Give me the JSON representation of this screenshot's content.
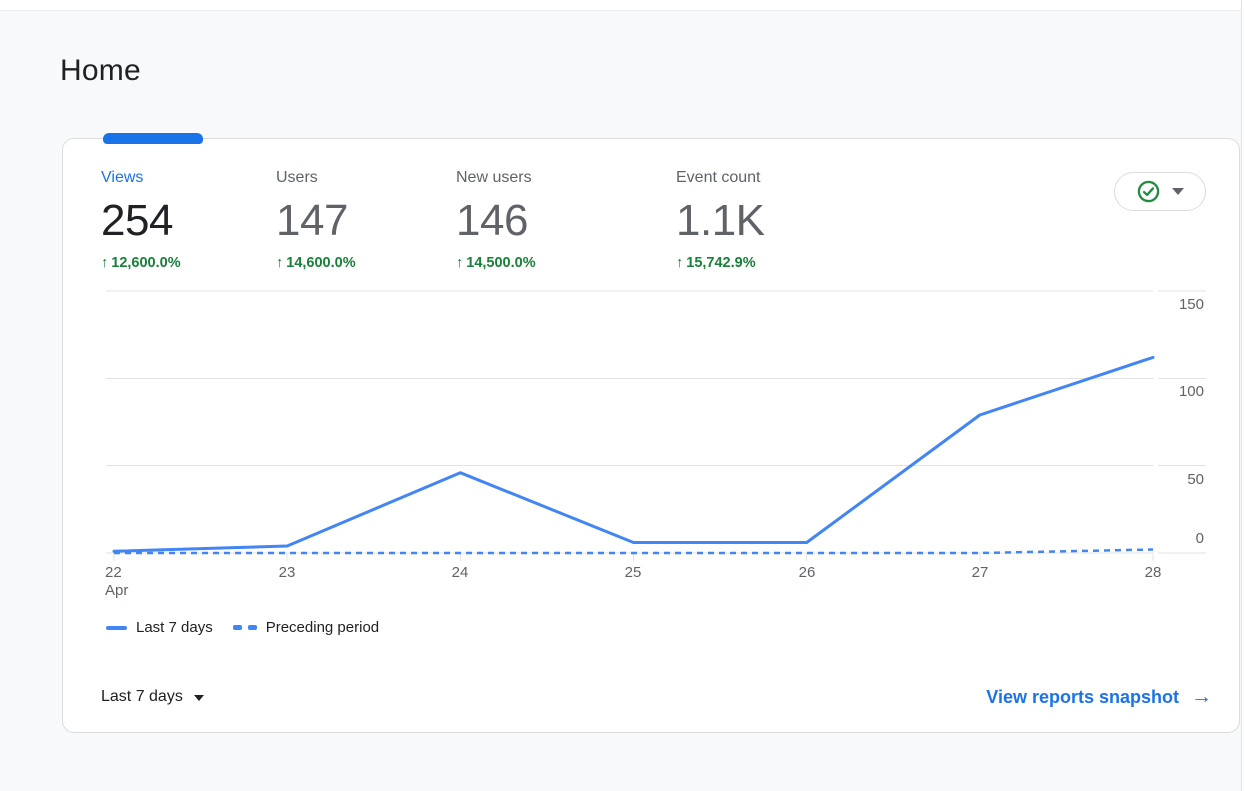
{
  "page": {
    "title": "Home"
  },
  "card": {
    "metrics": [
      {
        "label": "Views",
        "value": "254",
        "arrow": "↑",
        "delta": "12,600.0%",
        "selected": true
      },
      {
        "label": "Users",
        "value": "147",
        "arrow": "↑",
        "delta": "14,600.0%",
        "selected": false
      },
      {
        "label": "New users",
        "value": "146",
        "arrow": "↑",
        "delta": "14,500.0%",
        "selected": false
      },
      {
        "label": "Event count",
        "value": "1.1K",
        "arrow": "↑",
        "delta": "15,742.9%",
        "selected": false
      }
    ],
    "status_button": {
      "icon": "check-circle",
      "icon_color": "#1e8e3e"
    },
    "legend": [
      {
        "label": "Last 7 days",
        "style": "solid"
      },
      {
        "label": "Preceding period",
        "style": "dashed"
      }
    ],
    "footer": {
      "range_label": "Last 7 days",
      "link_label": "View reports snapshot",
      "link_arrow": "→"
    }
  },
  "chart_data": {
    "type": "line",
    "title": "",
    "x": [
      "Apr 22",
      "Apr 23",
      "Apr 24",
      "Apr 25",
      "Apr 26",
      "Apr 27",
      "Apr 28"
    ],
    "xtick_labels": [
      "22",
      "23",
      "24",
      "25",
      "26",
      "27",
      "28"
    ],
    "x_sublabel": "Apr",
    "series": [
      {
        "name": "Last 7 days",
        "style": "solid",
        "values": [
          1,
          4,
          46,
          6,
          6,
          79,
          112
        ]
      },
      {
        "name": "Preceding period",
        "style": "dashed",
        "values": [
          0,
          0,
          0,
          0,
          0,
          0,
          2
        ]
      }
    ],
    "ylim": [
      0,
      150
    ],
    "yticks": [
      150,
      100,
      50,
      0
    ],
    "ytick_labels": [
      "150",
      "100",
      "50",
      "0"
    ],
    "xlabel": "",
    "ylabel": "",
    "grid": true,
    "legend_position": "bottom",
    "line_color": "#4285f4"
  },
  "colors": {
    "accent_blue": "#1a73e8",
    "chart_blue": "#4285f4",
    "positive_green": "#188038",
    "text_dark": "#202124",
    "text_gray": "#5f6368",
    "page_bg": "#f8f9fa"
  }
}
